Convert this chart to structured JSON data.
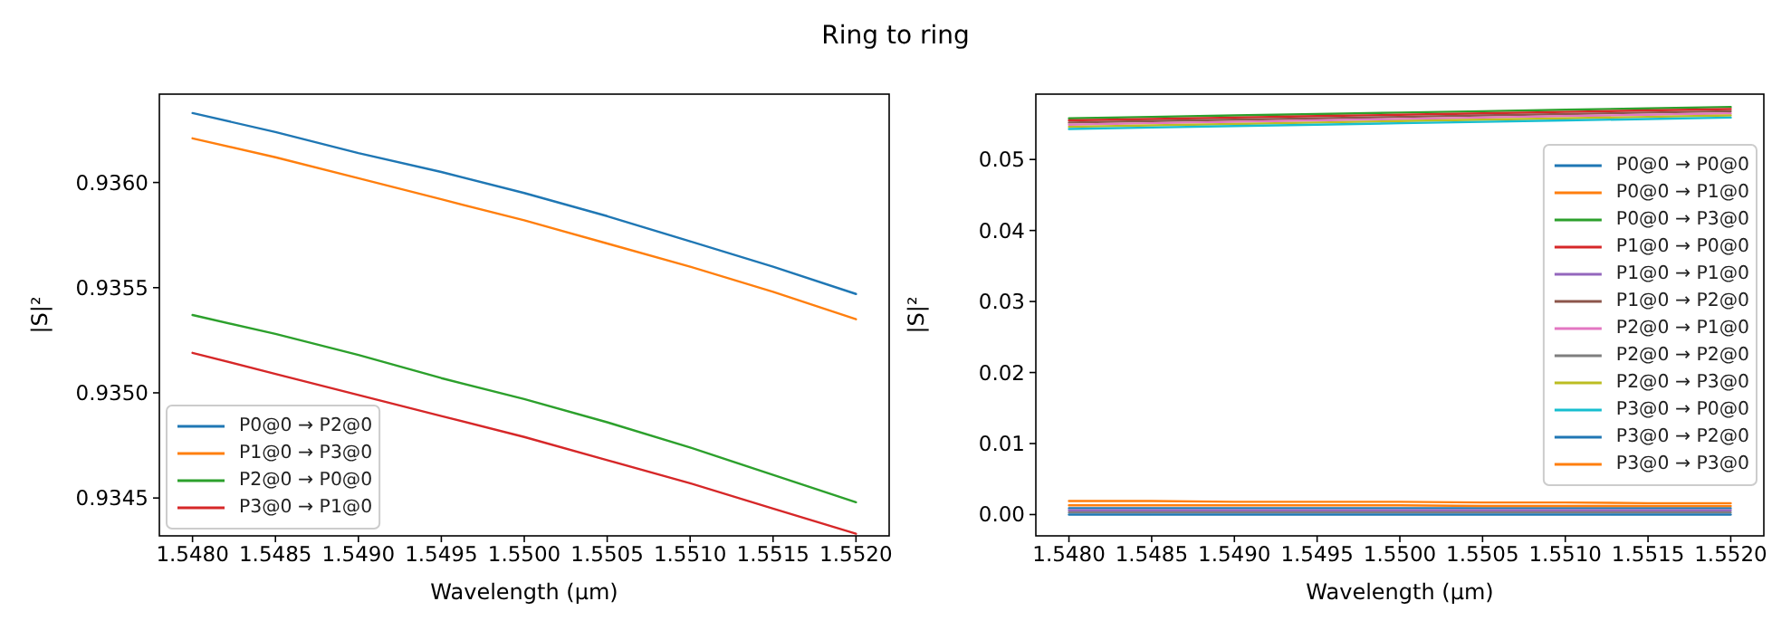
{
  "chart_data": [
    {
      "type": "line",
      "title": "Ring to ring",
      "xlabel": "Wavelength (µm)",
      "ylabel": "|S|²",
      "legend": "bottom left",
      "x": [
        1.548,
        1.5485,
        1.549,
        1.5495,
        1.55,
        1.5505,
        1.551,
        1.5515,
        1.552
      ],
      "xlim": [
        1.5478,
        1.5522
      ],
      "xticks": [
        {
          "value": 1.548,
          "label": "1.5480"
        },
        1.5485,
        {
          "value": 1.549,
          "label": "1.5490"
        },
        1.5495,
        {
          "value": 1.55,
          "label": "1.5500"
        },
        1.5505,
        {
          "value": 1.551,
          "label": "1.5510"
        },
        1.5515,
        {
          "value": 1.552,
          "label": "1.5520"
        }
      ],
      "ylim": [
        0.93432,
        0.93642
      ],
      "yticks": [
        0.9345,
        {
          "value": 0.935,
          "label": "0.9350"
        },
        0.9355,
        {
          "value": 0.936,
          "label": "0.9360"
        }
      ],
      "series": [
        {
          "name": "P0@0 → P2@0",
          "color": "#1f77b4",
          "values": [
            0.93633,
            0.93624,
            0.93614,
            0.93605,
            0.93595,
            0.93584,
            0.93572,
            0.9356,
            0.93547
          ]
        },
        {
          "name": "P1@0 → P3@0",
          "color": "#ff7f0e",
          "values": [
            0.93621,
            0.93612,
            0.93602,
            0.93592,
            0.93582,
            0.93571,
            0.9356,
            0.93548,
            0.93535
          ]
        },
        {
          "name": "P2@0 → P0@0",
          "color": "#2ca02c",
          "values": [
            0.93537,
            0.93528,
            0.93518,
            0.93507,
            0.93497,
            0.93486,
            0.93474,
            0.93461,
            0.93448
          ]
        },
        {
          "name": "P3@0 → P1@0",
          "color": "#d62728",
          "values": [
            0.93519,
            0.93509,
            0.93499,
            0.93489,
            0.93479,
            0.93468,
            0.93457,
            0.93445,
            0.93433
          ]
        }
      ]
    },
    {
      "type": "line",
      "xlabel": "Wavelength (µm)",
      "ylabel": "|S|²",
      "legend": "right",
      "x": [
        1.548,
        1.5485,
        1.549,
        1.5495,
        1.55,
        1.5505,
        1.551,
        1.5515,
        1.552
      ],
      "xlim": [
        1.5478,
        1.5522
      ],
      "xticks": [
        {
          "value": 1.548,
          "label": "1.5480"
        },
        1.5485,
        {
          "value": 1.549,
          "label": "1.5490"
        },
        1.5495,
        {
          "value": 1.55,
          "label": "1.5500"
        },
        1.5505,
        {
          "value": 1.551,
          "label": "1.5510"
        },
        1.5515,
        {
          "value": 1.552,
          "label": "1.5520"
        }
      ],
      "ylim": [
        -0.003,
        0.0592
      ],
      "yticks": [
        {
          "value": 0,
          "label": "0.00"
        },
        0.01,
        0.02,
        0.03,
        0.04,
        0.05
      ],
      "series": [
        {
          "name": "P0@0 → P0@0",
          "color": "#1f77b4",
          "values": [
            0.0009,
            0.0009,
            0.0009,
            0.0009,
            0.0009,
            0.0009,
            0.0009,
            0.0009,
            0.0009
          ]
        },
        {
          "name": "P0@0 → P1@0",
          "color": "#ff7f0e",
          "values": [
            0.0019,
            0.0019,
            0.0018,
            0.0018,
            0.0018,
            0.0017,
            0.0017,
            0.0016,
            0.0016
          ]
        },
        {
          "name": "P0@0 → P3@0",
          "color": "#2ca02c",
          "values": [
            0.0558,
            0.056,
            0.0562,
            0.0564,
            0.0566,
            0.0568,
            0.057,
            0.0572,
            0.0574
          ]
        },
        {
          "name": "P1@0 → P0@0",
          "color": "#d62728",
          "values": [
            0.0555,
            0.0557,
            0.0559,
            0.0561,
            0.0563,
            0.0565,
            0.0567,
            0.0569,
            0.0571
          ]
        },
        {
          "name": "P1@0 → P1@0",
          "color": "#9467bd",
          "values": [
            0.0006,
            0.0006,
            0.0006,
            0.0006,
            0.0006,
            0.0006,
            0.0006,
            0.0006,
            0.0006
          ]
        },
        {
          "name": "P1@0 → P2@0",
          "color": "#8c564b",
          "values": [
            0.0552,
            0.0554,
            0.0556,
            0.0558,
            0.056,
            0.0562,
            0.0564,
            0.0566,
            0.0568
          ]
        },
        {
          "name": "P2@0 → P1@0",
          "color": "#e377c2",
          "values": [
            0.0549,
            0.0551,
            0.0553,
            0.0555,
            0.0557,
            0.0559,
            0.0561,
            0.0563,
            0.0565
          ]
        },
        {
          "name": "P2@0 → P2@0",
          "color": "#7f7f7f",
          "values": [
            0.0003,
            0.0003,
            0.0003,
            0.0003,
            0.0003,
            0.0003,
            0.0003,
            0.0003,
            0.0003
          ]
        },
        {
          "name": "P2@0 → P3@0",
          "color": "#bcbd22",
          "values": [
            0.0546,
            0.0548,
            0.055,
            0.0552,
            0.0554,
            0.0556,
            0.0558,
            0.056,
            0.0562
          ]
        },
        {
          "name": "P3@0 → P0@0",
          "color": "#17becf",
          "values": [
            0.0543,
            0.0545,
            0.0547,
            0.0549,
            0.0551,
            0.0553,
            0.0555,
            0.0557,
            0.0559
          ]
        },
        {
          "name": "P3@0 → P2@0",
          "color": "#1f77b4",
          "values": [
            0,
            0,
            0,
            0,
            0,
            0,
            0,
            0,
            0
          ]
        },
        {
          "name": "P3@0 → P3@0",
          "color": "#ff7f0e",
          "values": [
            0.0013,
            0.0013,
            0.0013,
            0.0013,
            0.0013,
            0.0012,
            0.0012,
            0.0012,
            0.0012
          ]
        }
      ]
    }
  ]
}
